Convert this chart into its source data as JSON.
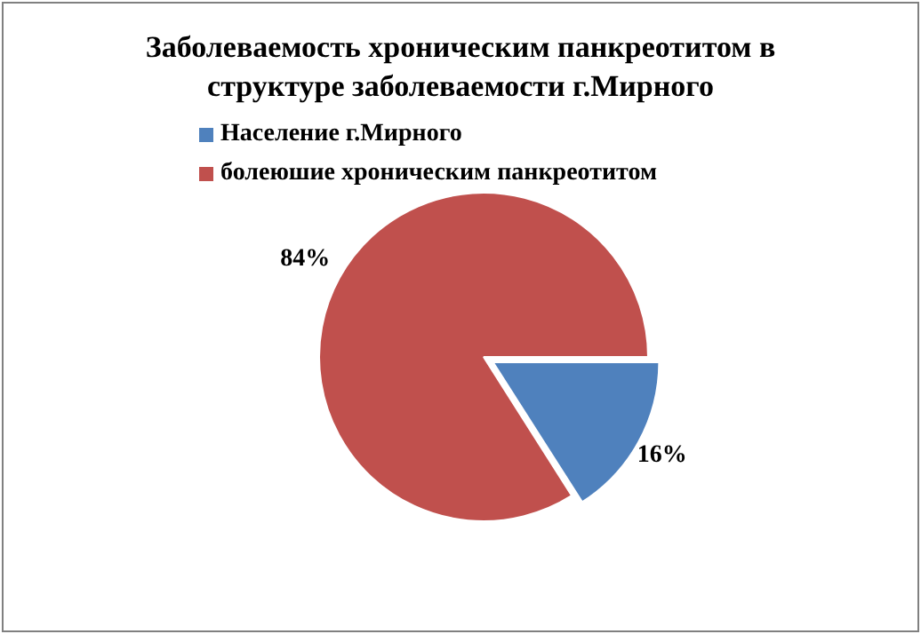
{
  "chart_data": {
    "type": "pie",
    "title": "Заболеваемость хроническим панкреотитом в структуре заболеваемости г.Мирного",
    "categories": [
      "Население г.Мирного",
      "болеюшие хроническим панкреотитом"
    ],
    "values": [
      16,
      84
    ],
    "colors": [
      "#4f81bd",
      "#c0504d"
    ],
    "value_labels": [
      "16%",
      "84%"
    ],
    "legend": "top left"
  }
}
